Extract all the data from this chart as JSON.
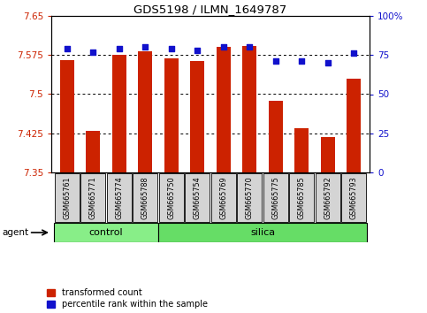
{
  "title": "GDS5198 / ILMN_1649787",
  "samples": [
    "GSM665761",
    "GSM665771",
    "GSM665774",
    "GSM665788",
    "GSM665750",
    "GSM665754",
    "GSM665769",
    "GSM665770",
    "GSM665775",
    "GSM665785",
    "GSM665792",
    "GSM665793"
  ],
  "red_values": [
    7.565,
    7.43,
    7.575,
    7.582,
    7.568,
    7.563,
    7.59,
    7.593,
    7.488,
    7.435,
    7.418,
    7.53
  ],
  "blue_values": [
    79,
    77,
    79,
    80,
    79,
    78,
    80,
    80,
    71,
    71,
    70,
    76
  ],
  "ylim_left": [
    7.35,
    7.65
  ],
  "ylim_right": [
    0,
    100
  ],
  "yticks_left": [
    7.35,
    7.425,
    7.5,
    7.575,
    7.65
  ],
  "yticks_right": [
    0,
    25,
    50,
    75,
    100
  ],
  "grid_lines": [
    7.425,
    7.5,
    7.575
  ],
  "control_count": 4,
  "silica_count": 8,
  "bar_color": "#cc2200",
  "dot_color": "#1111cc",
  "control_color": "#88ee88",
  "silica_color": "#66dd66",
  "agent_label": "agent",
  "legend_red": "transformed count",
  "legend_blue": "percentile rank within the sample",
  "tick_label_color_left": "#cc2200",
  "tick_label_color_right": "#1111cc",
  "bar_bottom": 7.35
}
